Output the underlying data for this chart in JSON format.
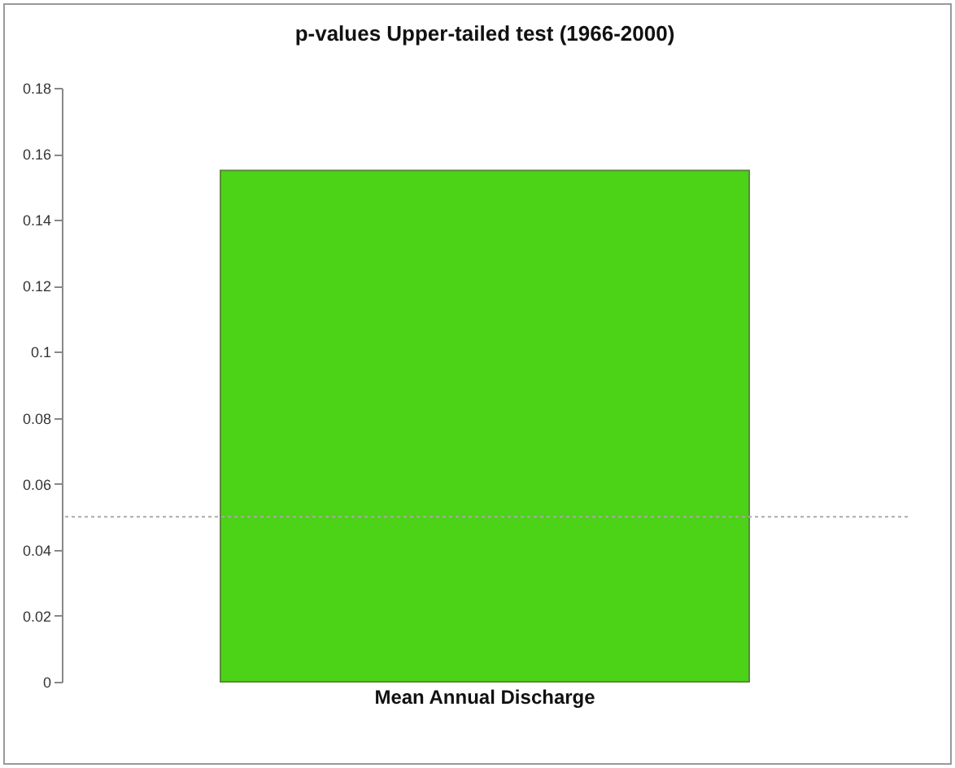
{
  "chart_data": {
    "type": "bar",
    "title": "p-values Upper-tailed test (1966-2000)",
    "categories": [
      "Mean Annual Discharge"
    ],
    "series": [
      {
        "color": "#4cd216",
        "values": [
          0.155
        ]
      }
    ],
    "ylim": [
      0,
      0.18
    ],
    "yticks": [
      0,
      0.02,
      0.04,
      0.06,
      0.08,
      0.1,
      0.12,
      0.14,
      0.16,
      0.18
    ],
    "grid": false,
    "legend": false,
    "ref_lines": [
      {
        "axis": "y",
        "value": 0.05,
        "color": "#aaaaaa",
        "line_style": "dotted"
      }
    ]
  }
}
